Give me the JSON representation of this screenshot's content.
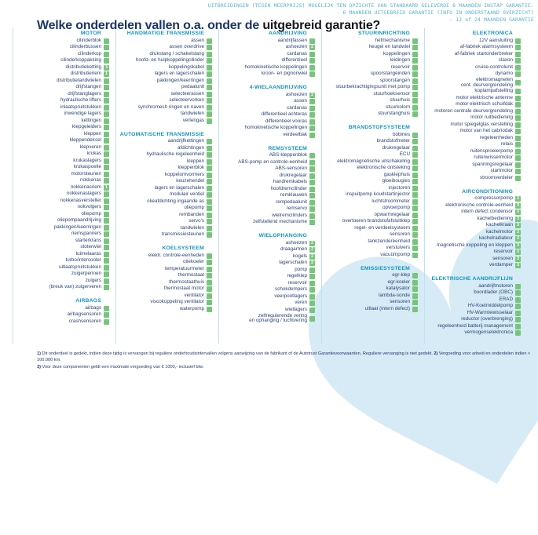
{
  "title": {
    "prefix": "Welke onderdelen vallen o.a. onder de ",
    "highlight": "uitgebreid garantie?"
  },
  "top_note_lines": [
    "UITBREIDINGEN (TEGEN MEERPRIJS) MOGELIJK TEN OPZICHTE VAN STANDAARD GELEVERDE 6 MAANDEN INSTAP GARANTIE:",
    "- 6 MAANDEN UITGEBREID GARANTIE (INFO IN ONDERSTAAND OVERZICHT)",
    "- 12 of 24 MAANDEN GARANTIE"
  ],
  "colors": {
    "accent_teal": "#1294c2",
    "navy_text": "#2a4577",
    "check_green": "#77c57c",
    "divider_blue": "#bfe0ee",
    "shape_blue": "#d6ebf5"
  },
  "columns": [
    {
      "sections": [
        {
          "header": "MOTOR",
          "items": [
            "cilinderblok",
            "cilinderbussen",
            "cilinderkop",
            "cilinderkoppakking",
            {
              "label": "distributieketting",
              "badge": "3"
            },
            {
              "label": "distributieriem",
              "badge": "1"
            },
            "distributietandwielen",
            "drijfstangen",
            "drijfstanglagers",
            "hydraulische lifters",
            "inlaatspruitstukken",
            "inwendige lagers",
            "kettingen",
            "klepgeleiders",
            "kleppen",
            "kleppendeksel",
            "klepveren",
            "krukas",
            "krukaslagers",
            "krukaspoelie",
            "motorsteunen",
            "nokkenas",
            {
              "label": "nokkenasriem",
              "badge": "1"
            },
            "nokkenaslagers",
            "nokkenasversteller",
            "nokvolgers",
            "oliepomp",
            "oliepompaandrijving",
            "pakkingen/keerringen",
            "riemspanners",
            "starterkrans",
            "stoterwiel",
            "tuimelaaras",
            "turbo/intercooler",
            "uitlaatspruitstukken",
            "zuigerpennen",
            "zuigers",
            "(breuk van) zuigerveren"
          ]
        },
        {
          "header": "AIRBAGS",
          "items": [
            "airbags",
            "airbagsensoren",
            "crashsensoren"
          ]
        }
      ]
    },
    {
      "sections": [
        {
          "header": "HANDMATIGE TRANSMISSIE",
          "items": [
            "assen",
            "assen overdrive",
            "drukstang / schakelstang",
            "hoofd- en hulpkoppelingcilinder",
            "koppelingskabel",
            "lagers en lagerschalen",
            "pakkingen/keerringen",
            "pedaalunit",
            "selecteerassen",
            "selecteervorken",
            "synchromesh ringen en naven",
            "tandwielen",
            "verlengas"
          ]
        },
        {
          "header": "AUTOMATISCHE TRANSMISSIE",
          "items": [
            "aandrijfkettingen",
            "afdichtingen",
            "hydraulische regeleenheid",
            "kleppen",
            "kleppenblok",
            "koppelomvormers",
            "keuzehendel",
            "lagers en lagerschalen",
            "modulair ventiel",
            "olieafdichting ingaande as",
            "oliepomp",
            "rembanden",
            "servo's",
            "tandwielen",
            "transmissiesteunen"
          ]
        },
        {
          "header": "KOELSYSTEEM",
          "items": [
            "elektr. controle-eenheden",
            "oliekoeler",
            "temperatuurmeter",
            "thermostaat",
            "thermostaathuis",
            "thermostaat motor",
            "ventilator",
            "viscokoppeling ventilator",
            "waterpomp"
          ]
        }
      ]
    },
    {
      "sections": [
        {
          "header": "AANDRIJVING",
          "items": [
            "aandrijfassen",
            {
              "label": "ashoezen",
              "badge": "2"
            },
            "cardanas",
            "differentieel",
            "homokinetische koppelingen",
            "kroon- en pignonwiel"
          ]
        },
        {
          "header": "4-WIELAANDRIJVING",
          "items": [
            {
              "label": "ashoezen",
              "badge": "2"
            },
            "assen",
            "cardanas",
            "differentieel achteras",
            "differentieel vooras",
            "homokinetische koppelingen",
            "verdeelbak"
          ]
        },
        {
          "header": "REMSYSTEEM",
          "items": [
            "ABS-kleppenblok",
            "ABS-pomp en controle-eenheid",
            "ABS-sensoren",
            "drukregelaar",
            "handremkabels",
            "hoofdremcilinder",
            "remklauwen",
            "rempedaalunit",
            "remservo",
            "wielremcilinders",
            "zelfstellend mechanisme"
          ]
        },
        {
          "header": "WIELOPHANGING",
          "items": [
            {
              "label": "ashoezen",
              "badge": "2"
            },
            {
              "label": "draagarmen",
              "badge": "2"
            },
            {
              "label": "kogels",
              "badge": "2"
            },
            {
              "label": "lagerschalen",
              "badge": "2"
            },
            "pomp",
            "regelklep",
            "reservoir",
            "schokdempers",
            "veerpootlagers",
            "veren",
            "wiellagers",
            "zelfregulerende vering\nen ophanging / luchtvering"
          ]
        }
      ]
    },
    {
      "sections": [
        {
          "header": "STUURINRICHTING",
          "items": [
            "hefmechanisme",
            "heugel en tandwiel",
            "koppelingen",
            "leidingen",
            "reservoir",
            "spoorstangeinden",
            "spoorstangen",
            "stuurbekrachtigingsunit met pomp",
            "stuurhoeksensor",
            "stuurhuis",
            "stuurkolom",
            "stuurstanghuis"
          ]
        },
        {
          "header": "BRANDSTOFSYSTEEM",
          "items": [
            "bobines",
            "brandstofmeter",
            "drukregelaar",
            "ECU",
            "elektromagnetische uitschakeling",
            "elektronische ontsteking",
            "gasklephuis",
            "gloeibougies",
            "injectoren",
            "inspuitpomp koudstartinjector",
            "luchtstroommeter",
            "opvoerpomp",
            "opwarmregelaar",
            "overtoeren brandstofafsluitklep",
            "regel- en verdeelsysteem",
            "sensoren",
            "tankzendereenheid",
            "verstuivers",
            "vacuümpomp"
          ]
        },
        {
          "header": "EMISSIESYSTEEM",
          "items": [
            "egr-klep",
            "egr-koeler",
            "katalysator",
            "lambda-sonde",
            "sensoren",
            "uitlaat (intern defect)"
          ]
        }
      ]
    },
    {
      "sections": [
        {
          "header": "ELEKTRONICA",
          "items": [
            "12V aansluiting",
            "af-fabriek alarmsysteem",
            "af-fabriek startonderbreker",
            "claxon",
            "cruise-controlunit",
            "dynamo",
            "elektromagneten\ncent. deurvergrendeling",
            "koplampafstelling",
            "motor elektrische antenne",
            "motor elektrisch schuifdak",
            "motoren centrale deurvergrendeling",
            "motor ruitbediening",
            "motor spiegelglas verstelling",
            "motor van het cabriodak",
            "regeleenheden",
            "relais",
            "ruitensproeierpomp",
            "ruitenwissermotor",
            "spanningsregelaar",
            "startmotor",
            "stroomverdeler"
          ]
        },
        {
          "header": "AIRCONDITIONING",
          "items": [
            {
              "label": "compressorpomp",
              "badge": "3"
            },
            {
              "label": "elektronische controle-eenheid",
              "badge": "3"
            },
            {
              "label": "intern defect condensor",
              "badge": "3"
            },
            {
              "label": "kachelbediening",
              "badge": "3"
            },
            {
              "label": "kachelkraan",
              "badge": "3"
            },
            {
              "label": "kachelmotor",
              "badge": "3"
            },
            {
              "label": "kachelradiateur",
              "badge": "3"
            },
            {
              "label": "magnetische koppeling en kleppen",
              "badge": "3"
            },
            {
              "label": "reservoir",
              "badge": "3"
            },
            {
              "label": "sensoren",
              "badge": "3"
            },
            {
              "label": "verdamper",
              "badge": "3"
            }
          ]
        },
        {
          "header": "ELEKTRISCHE AANDRIJFLIJN",
          "items": [
            "aandrijfmotoren",
            "boordlader (OBC)",
            "ERAD",
            "HV-Koelmiddelpomp",
            "HV-Warmtewisselaar",
            "reductor (overbrenging)",
            "regeleenheid batterij management",
            "vermogenselektronica"
          ]
        }
      ]
    }
  ],
  "footnotes": [
    [
      {
        "b": "1) "
      },
      {
        "t": "Dit onderdeel is gedekt, indien deze tijdig is vervangen bij reguliere onderhoudsintervallen volgens aanwijzing van de fabrikant of de Autotrust Garantievoorwaarden. Reguliere vervanging is niet gedekt. "
      },
      {
        "b": "2) "
      },
      {
        "t": "Vergoeding voor arbeid en onderdelen indien < 100.000 km."
      }
    ],
    [
      {
        "b": "3) "
      },
      {
        "t": "Voor deze componenten geldt een maximale vergoeding van € 1000,- inclusief btw."
      }
    ]
  ]
}
